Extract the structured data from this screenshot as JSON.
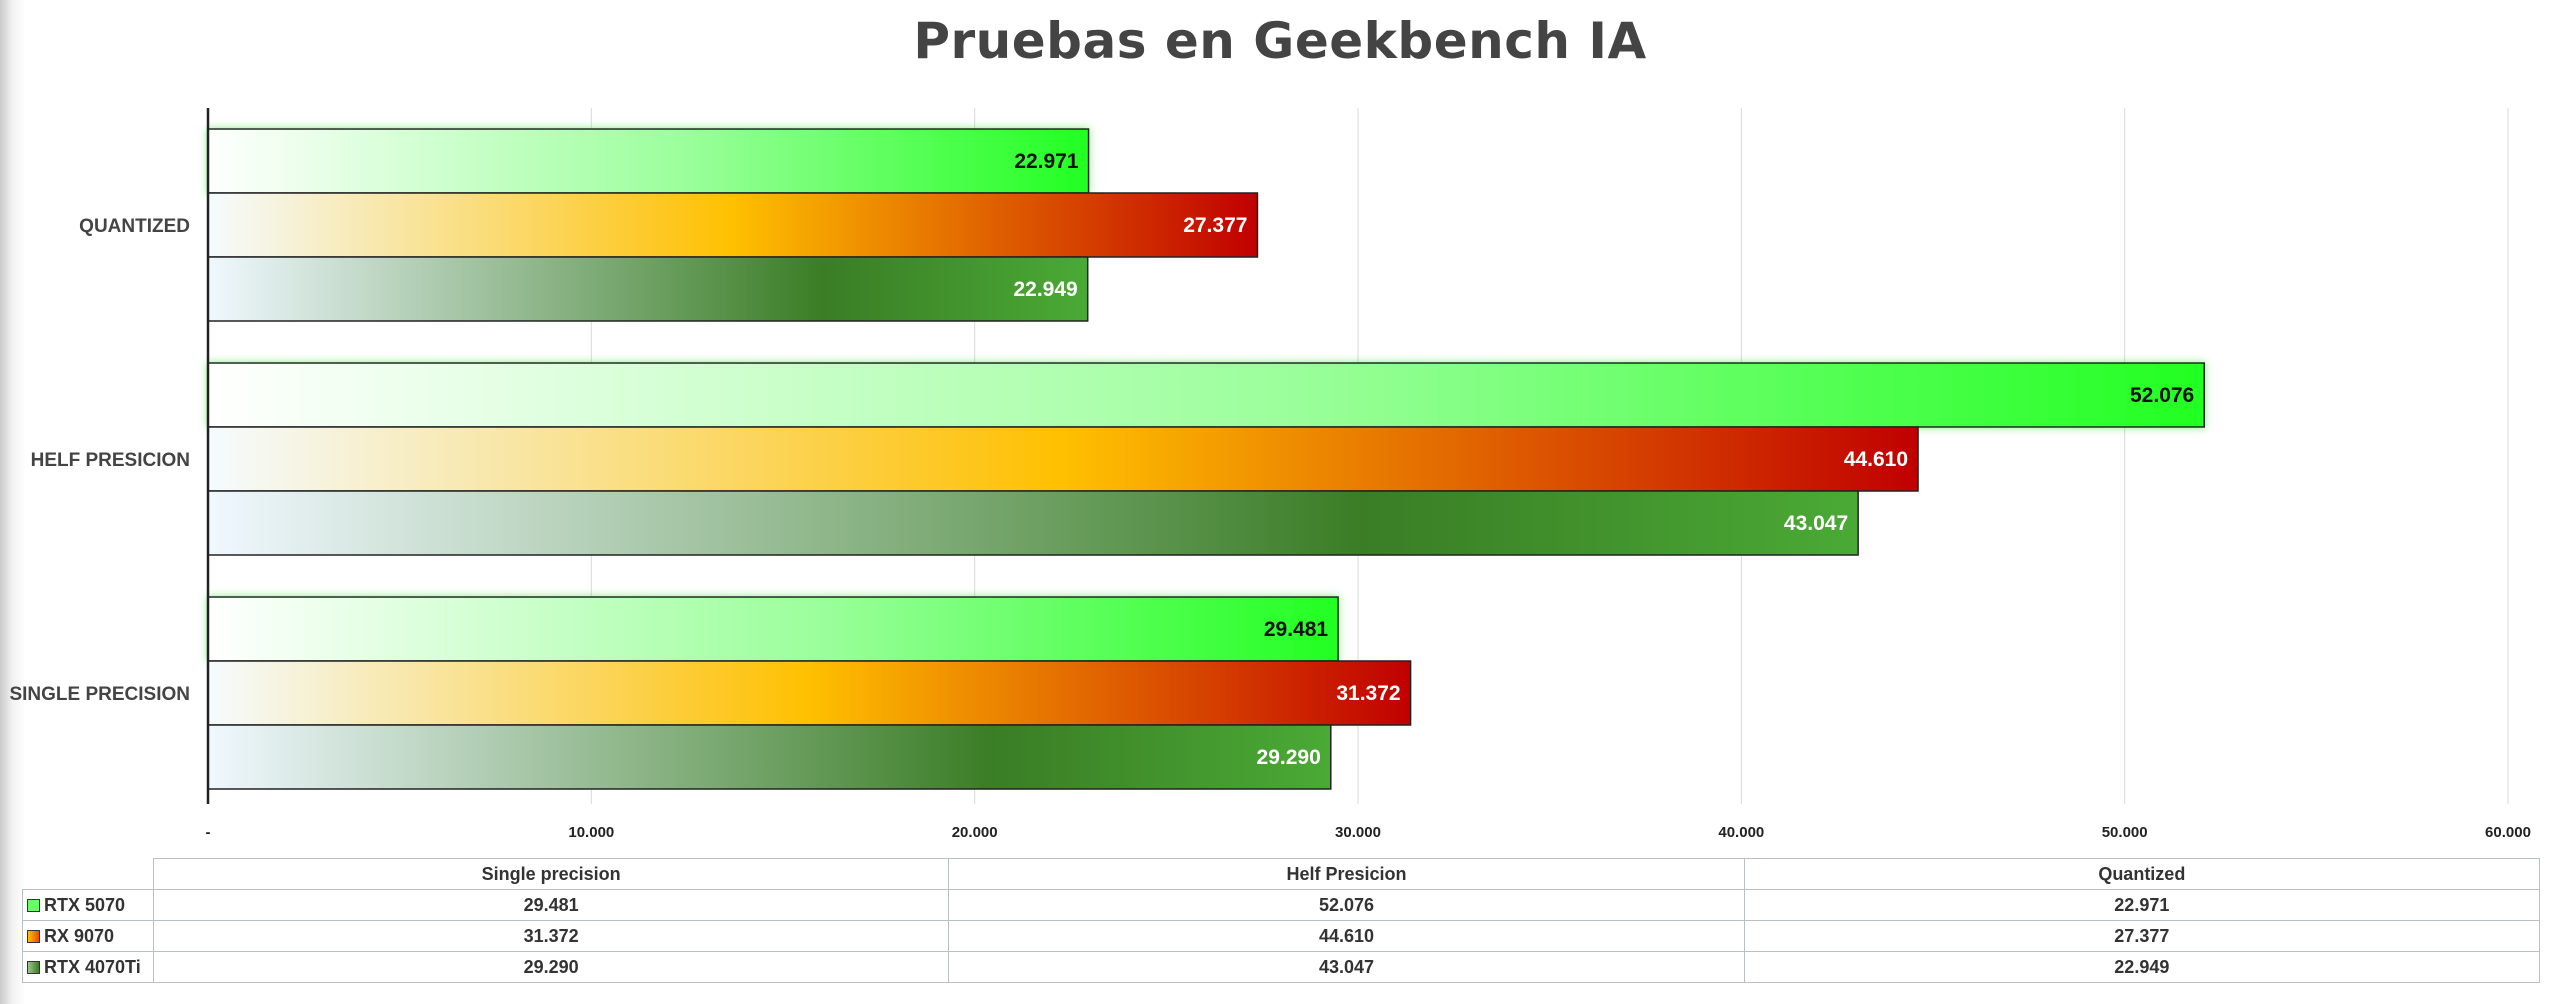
{
  "chart_data": {
    "type": "bar",
    "orientation": "horizontal",
    "title": "Pruebas en Geekbench IA",
    "categories": [
      "QUANTIZED",
      "HELF PRESICION",
      "SINGLE PRECISION"
    ],
    "series": [
      {
        "name": "RTX 5070",
        "values": [
          22971,
          52076,
          29481
        ],
        "labels": [
          "22.971",
          "52.076",
          "29.481"
        ],
        "colors": [
          "#ffffff",
          "#99ff99",
          "#22ff22"
        ],
        "label_color": "#111111"
      },
      {
        "name": "RX 9070",
        "values": [
          27377,
          44610,
          31372
        ],
        "labels": [
          "27.377",
          "44.610",
          "31.372"
        ],
        "colors": [
          "#f5fbff",
          "#ffc000",
          "#c00000"
        ],
        "label_color": "#ffffff"
      },
      {
        "name": "RTX 4070Ti",
        "values": [
          22949,
          43047,
          29290
        ],
        "labels": [
          "22.949",
          "43.047",
          "29.290"
        ],
        "colors": [
          "#f0f8ff",
          "#3a7d25",
          "#4aaa35"
        ],
        "label_color": "#ffffff"
      }
    ],
    "xlim": [
      0,
      60000
    ],
    "x_ticks": [
      0,
      10000,
      20000,
      30000,
      40000,
      50000,
      60000
    ],
    "x_tick_labels": [
      "-",
      "10.000",
      "20.000",
      "30.000",
      "40.000",
      "50.000",
      "60.000"
    ],
    "grid": true,
    "legend": "data-table-below"
  },
  "table": {
    "headers": [
      "Single precision",
      "Helf Presicion",
      "Quantized"
    ],
    "rows": [
      {
        "name": "RTX 5070",
        "cells": [
          "29.481",
          "52.076",
          "22.971"
        ],
        "key_color": "#66ff66"
      },
      {
        "name": "RX 9070",
        "cells": [
          "31.372",
          "44.610",
          "27.377"
        ],
        "key_color": "#ff9900"
      },
      {
        "name": "RTX 4070Ti",
        "cells": [
          "29.290",
          "43.047",
          "22.949"
        ],
        "key_color": "#4a8a30"
      }
    ]
  }
}
